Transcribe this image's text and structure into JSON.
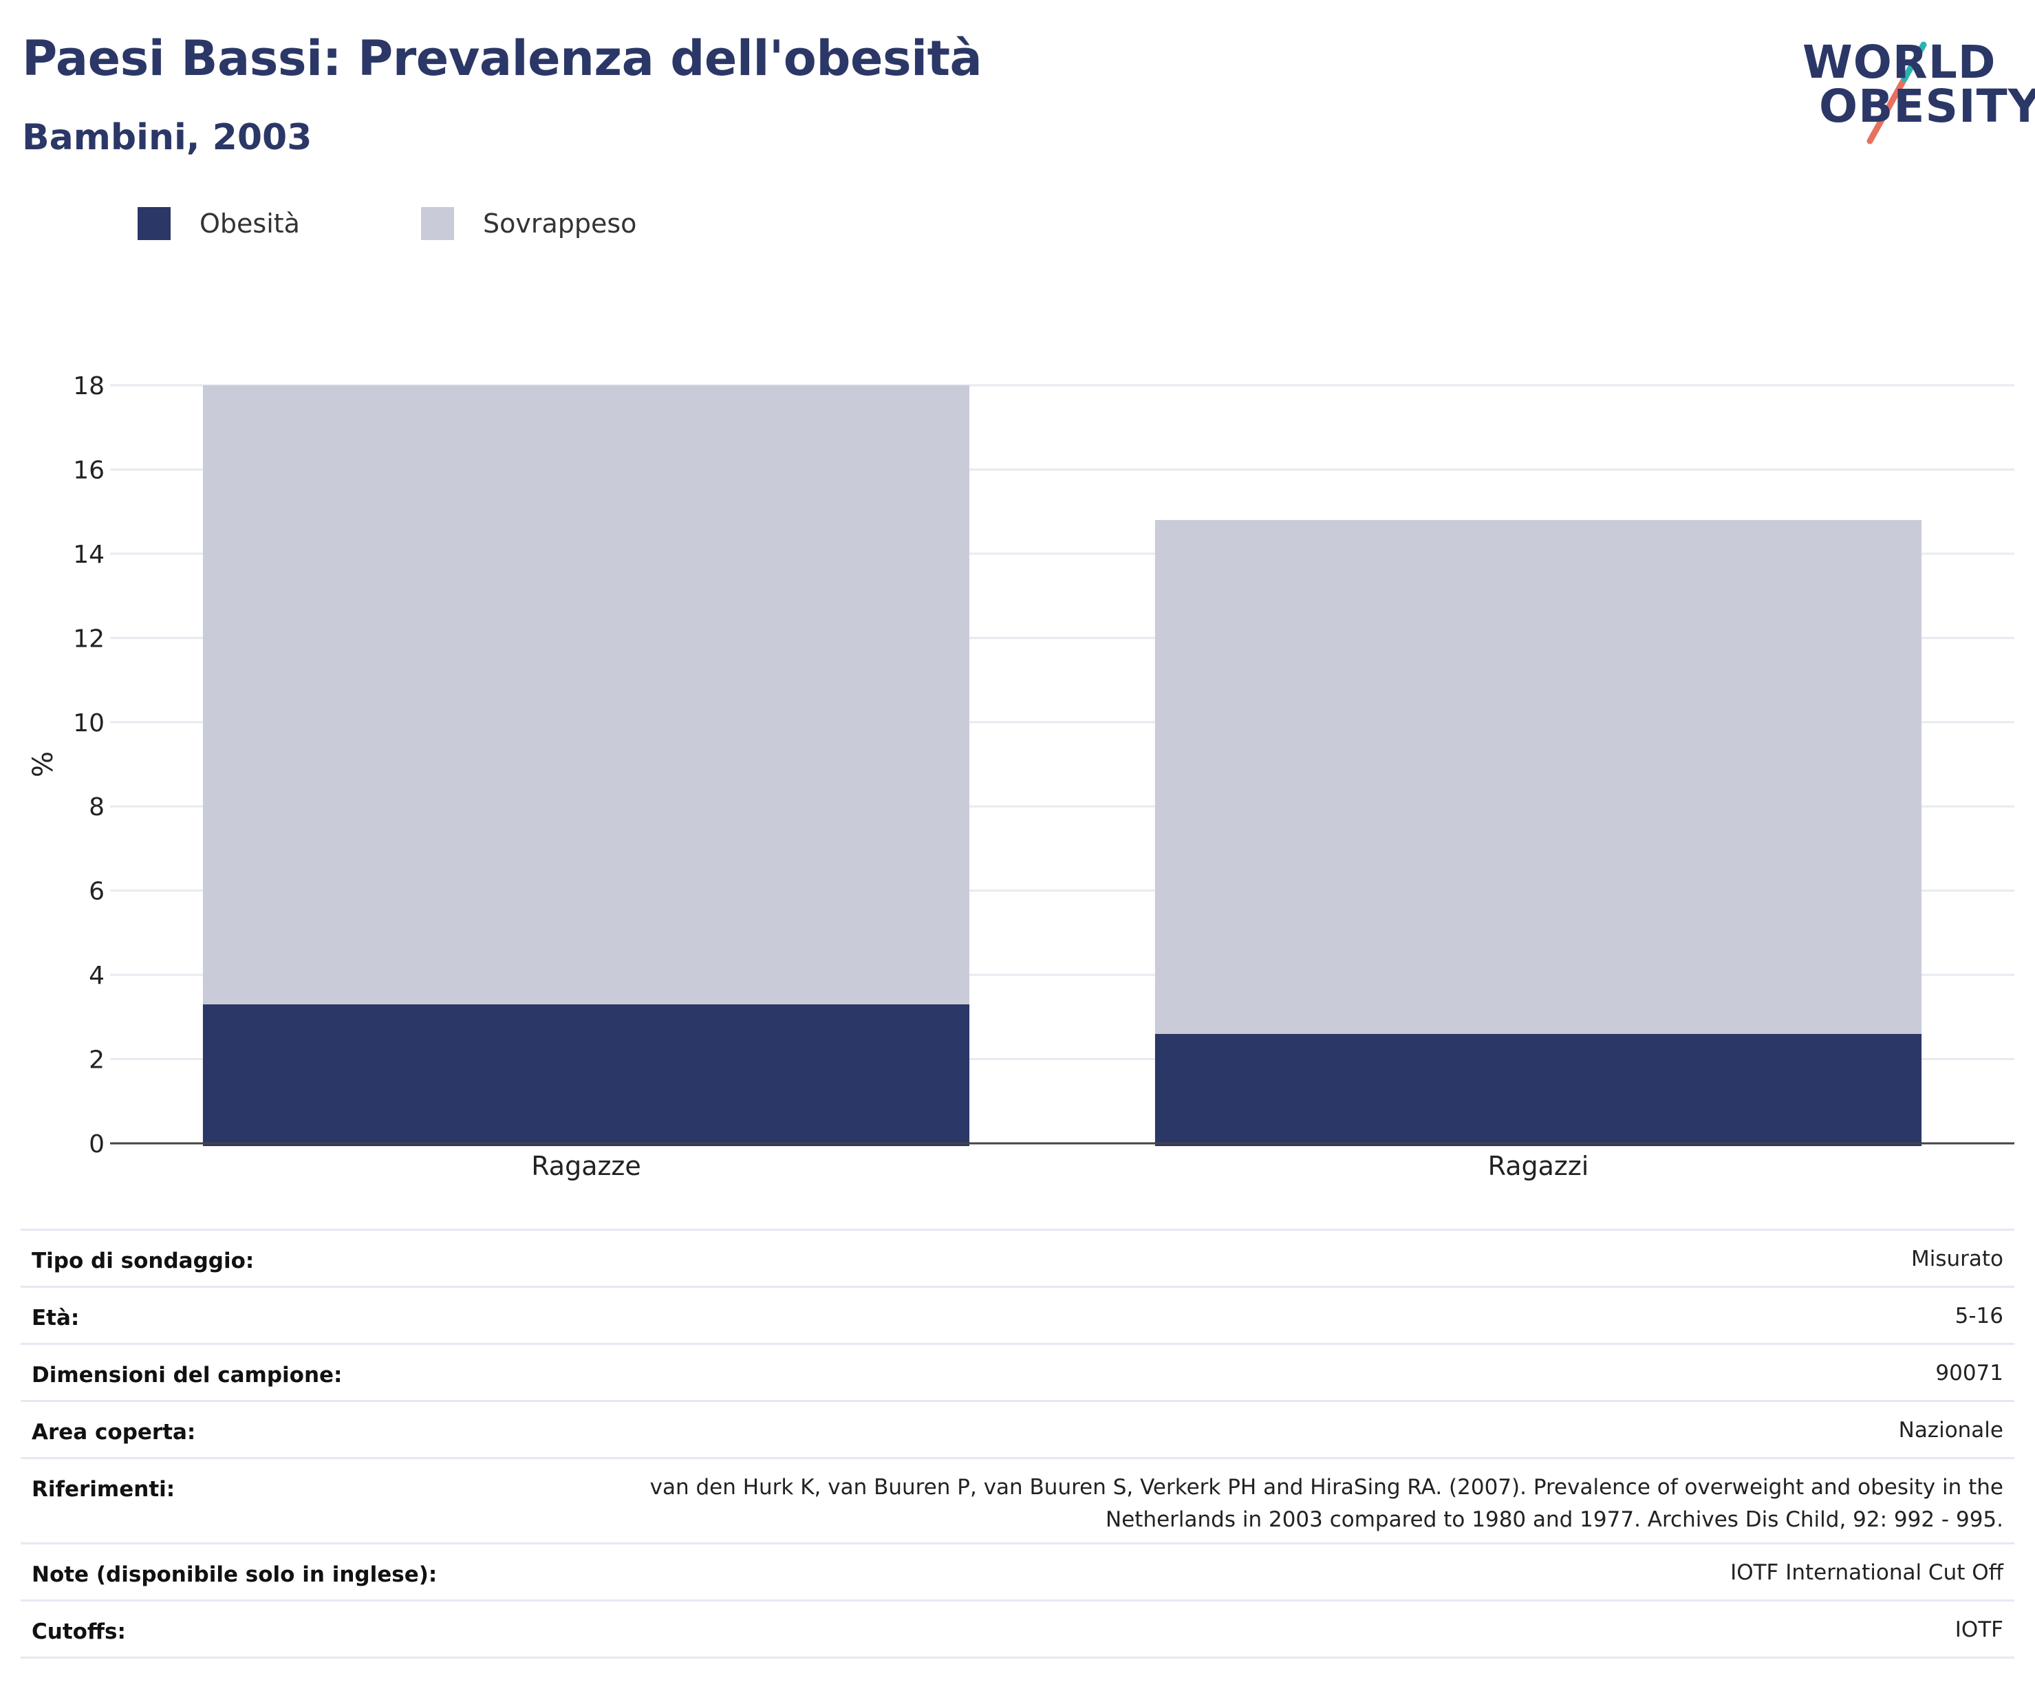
{
  "header": {
    "title": "Paesi Bassi: Prevalenza dell'obesità",
    "subtitle": "Bambini, 2003"
  },
  "logo": {
    "line1": "WORLD",
    "line2": "OBESITY"
  },
  "colors": {
    "obesity": "#2b3766",
    "overweight": "#c9ccd8",
    "title": "#2b3766",
    "logo_teal": "#2bb3b1",
    "logo_coral": "#e8705f"
  },
  "chart_data": {
    "type": "bar",
    "stacked": true,
    "categories": [
      "Ragazze",
      "Ragazzi"
    ],
    "series": [
      {
        "name": "Obesità",
        "values": [
          3.3,
          2.6
        ],
        "color": "#2b3766"
      },
      {
        "name": "Sovrappeso",
        "values": [
          14.7,
          12.2
        ],
        "color": "#c9ccd8"
      }
    ],
    "ylabel": "%",
    "xlabel": "",
    "ylim": [
      0,
      18
    ],
    "yticks": [
      0,
      2,
      4,
      6,
      8,
      10,
      12,
      14,
      16,
      18
    ],
    "grid": true,
    "legend_position": "top-left"
  },
  "info": [
    {
      "label": "Tipo di sondaggio:",
      "value": "Misurato"
    },
    {
      "label": "Età:",
      "value": "5-16"
    },
    {
      "label": "Dimensioni del campione:",
      "value": "90071"
    },
    {
      "label": "Area coperta:",
      "value": "Nazionale"
    },
    {
      "label": "Riferimenti:",
      "value": "van den Hurk K, van Buuren P, van Buuren S, Verkerk PH and HiraSing RA. (2007). Prevalence of overweight and obesity in the Netherlands in 2003 compared to 1980 and 1977. Archives Dis Child, 92: 992 - 995."
    },
    {
      "label": "Note (disponibile solo in inglese):",
      "value": "IOTF International Cut Off"
    },
    {
      "label": "Cutoffs:",
      "value": "IOTF"
    }
  ]
}
